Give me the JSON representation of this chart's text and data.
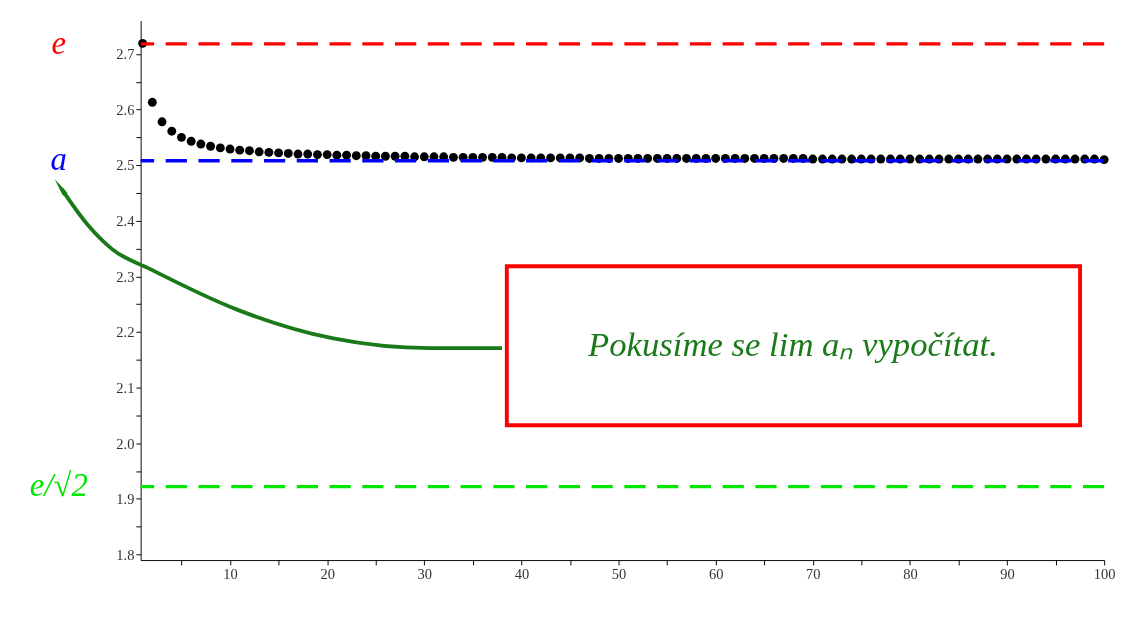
{
  "chart_data": {
    "type": "scatter",
    "x": [
      1,
      2,
      3,
      4,
      5,
      6,
      7,
      8,
      9,
      10,
      11,
      12,
      13,
      14,
      15,
      16,
      17,
      18,
      19,
      20,
      21,
      22,
      23,
      24,
      25,
      26,
      27,
      28,
      29,
      30,
      31,
      32,
      33,
      34,
      35,
      36,
      37,
      38,
      39,
      40,
      41,
      42,
      43,
      44,
      45,
      46,
      47,
      48,
      49,
      50,
      51,
      52,
      53,
      54,
      55,
      56,
      57,
      58,
      59,
      60,
      61,
      62,
      63,
      64,
      65,
      66,
      67,
      68,
      69,
      70,
      71,
      72,
      73,
      74,
      75,
      76,
      77,
      78,
      79,
      80,
      81,
      82,
      83,
      84,
      85,
      86,
      87,
      88,
      89,
      90,
      91,
      92,
      93,
      94,
      95,
      96,
      97,
      98,
      99,
      100
    ],
    "series": [
      {
        "color": "#000000",
        "values": [
          2.719,
          2.613,
          2.578,
          2.561,
          2.55,
          2.543,
          2.538,
          2.534,
          2.531,
          2.529,
          2.527,
          2.526,
          2.524,
          2.523,
          2.522,
          2.521,
          2.52,
          2.52,
          2.519,
          2.519,
          2.518,
          2.518,
          2.517,
          2.517,
          2.516,
          2.516,
          2.516,
          2.516,
          2.515,
          2.515,
          2.515,
          2.515,
          2.514,
          2.514,
          2.514,
          2.514,
          2.514,
          2.514,
          2.513,
          2.513,
          2.513,
          2.513,
          2.513,
          2.513,
          2.513,
          2.513,
          2.512,
          2.512,
          2.512,
          2.512,
          2.512,
          2.512,
          2.512,
          2.512,
          2.512,
          2.512,
          2.512,
          2.512,
          2.512,
          2.512,
          2.512,
          2.512,
          2.512,
          2.512,
          2.512,
          2.512,
          2.512,
          2.512,
          2.512,
          2.511,
          2.511,
          2.511,
          2.511,
          2.511,
          2.511,
          2.511,
          2.511,
          2.511,
          2.511,
          2.511,
          2.511,
          2.511,
          2.511,
          2.511,
          2.511,
          2.511,
          2.511,
          2.511,
          2.511,
          2.511,
          2.511,
          2.511,
          2.511,
          2.511,
          2.511,
          2.511,
          2.511,
          2.511,
          2.511,
          2.51
        ]
      }
    ],
    "marker": "circle",
    "xlim": [
      0.8,
      100
    ],
    "xticks": [
      {
        "value": 5,
        "label": null
      },
      10,
      {
        "value": 15,
        "label": null
      },
      20,
      {
        "value": 25,
        "label": null
      },
      30,
      {
        "value": 35,
        "label": null
      },
      40,
      {
        "value": 45,
        "label": null
      },
      50,
      {
        "value": 55,
        "label": null
      },
      60,
      {
        "value": 65,
        "label": null
      },
      70,
      {
        "value": 75,
        "label": null
      },
      80,
      {
        "value": 85,
        "label": null
      },
      90,
      {
        "value": 95,
        "label": null
      },
      100
    ],
    "ylim": [
      1.79,
      2.76
    ],
    "yticks": [
      {
        "value": 1.8,
        "label": "1.8"
      },
      {
        "value": 1.85,
        "label": null
      },
      {
        "value": 1.9,
        "label": "1.9"
      },
      {
        "value": 1.95,
        "label": null
      },
      {
        "value": 2.0,
        "label": "2.0"
      },
      {
        "value": 2.05,
        "label": null
      },
      {
        "value": 2.1,
        "label": "2.1"
      },
      {
        "value": 2.15,
        "label": null
      },
      {
        "value": 2.2,
        "label": "2.2"
      },
      {
        "value": 2.25,
        "label": null
      },
      {
        "value": 2.3,
        "label": "2.3"
      },
      {
        "value": 2.35,
        "label": null
      },
      {
        "value": 2.4,
        "label": "2.4"
      },
      {
        "value": 2.45,
        "label": null
      },
      {
        "value": 2.5,
        "label": "2.5"
      },
      {
        "value": 2.55,
        "label": null
      },
      {
        "value": 2.6,
        "label": "2.6"
      },
      {
        "value": 2.65,
        "label": null
      },
      {
        "value": 2.7,
        "label": "2.7"
      }
    ],
    "grid": false,
    "ref_lines": [
      {
        "axis": "y",
        "value": 2.718,
        "label": "e",
        "color": "#ff0000",
        "line_style": "dashed"
      },
      {
        "axis": "y",
        "value": 2.508,
        "label": "a",
        "color": "#0000ff",
        "line_style": "dashed"
      },
      {
        "axis": "y",
        "value": 1.922,
        "label": "e/√2",
        "color": "#00e600",
        "line_style": "dashed"
      }
    ],
    "annotations": [
      "Pokusíme se lim aₙ vypočítat."
    ]
  }
}
